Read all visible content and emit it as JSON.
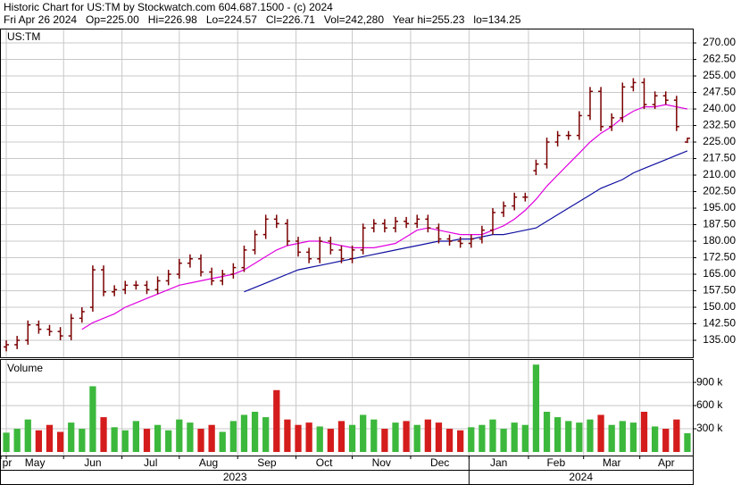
{
  "chart_data": {
    "type": "ohlc",
    "title": "Historic Chart for US:TM by Stockwatch.com 604.687.1500 - (c) 2024",
    "subtitle": "Fri Apr 26 2024   Op=225.00   Hi=226.98   Lo=224.57   Cl=226.71   Vol=242,280   Year hi=255.23   lo=134.25",
    "symbol": "US:TM",
    "bar_color": "#7a0000",
    "open": [
      132,
      133,
      135,
      142,
      140,
      139,
      137,
      145,
      150,
      167,
      157,
      158,
      160,
      160,
      158,
      162,
      165,
      170,
      172,
      166,
      162,
      165,
      168,
      176,
      183,
      190,
      188,
      180,
      175,
      172,
      180,
      176,
      172,
      176,
      186,
      188,
      186,
      189,
      188,
      190,
      186,
      181,
      180,
      179,
      181,
      185,
      193,
      196,
      200,
      212,
      215,
      225,
      228,
      228,
      237,
      248,
      232,
      236,
      250,
      252,
      242,
      246,
      244,
      225
    ],
    "high": [
      135,
      137,
      144,
      144,
      142,
      141,
      147,
      150,
      169,
      169,
      160,
      162,
      162,
      162,
      164,
      167,
      172,
      174,
      174,
      168,
      167,
      170,
      178,
      185,
      192,
      192,
      190,
      182,
      177,
      182,
      182,
      178,
      178,
      188,
      190,
      190,
      191,
      191,
      192,
      192,
      188,
      183,
      182,
      183,
      187,
      195,
      198,
      202,
      202,
      217,
      227,
      230,
      230,
      239,
      250,
      250,
      238,
      252,
      254,
      254,
      248,
      248,
      246,
      226.98
    ],
    "low": [
      130,
      131,
      133,
      138,
      137,
      135,
      135,
      143,
      148,
      155,
      155,
      156,
      158,
      156,
      156,
      160,
      163,
      168,
      164,
      160,
      160,
      163,
      166,
      174,
      181,
      186,
      178,
      173,
      170,
      170,
      174,
      170,
      170,
      174,
      184,
      184,
      184,
      186,
      186,
      184,
      179,
      178,
      177,
      177,
      179,
      183,
      191,
      194,
      198,
      210,
      213,
      223,
      226,
      226,
      235,
      230,
      230,
      234,
      248,
      240,
      240,
      242,
      230,
      224.57
    ],
    "close": [
      133,
      135,
      142,
      140,
      139,
      137,
      145,
      148,
      167,
      157,
      158,
      160,
      160,
      158,
      162,
      165,
      170,
      172,
      166,
      162,
      165,
      168,
      176,
      183,
      190,
      188,
      180,
      175,
      172,
      180,
      176,
      172,
      176,
      186,
      188,
      186,
      189,
      188,
      190,
      186,
      181,
      180,
      179,
      181,
      185,
      193,
      196,
      200,
      200,
      215,
      225,
      228,
      228,
      237,
      248,
      232,
      236,
      250,
      252,
      242,
      246,
      244,
      232,
      226.71
    ],
    "xlim": [
      -0.5,
      63.5
    ],
    "ylim": [
      127.3,
      276.1
    ],
    "yticks": [
      {
        "value": 135,
        "label": "135.00"
      },
      {
        "value": 142.5,
        "label": "142.50"
      },
      {
        "value": 150,
        "label": "150.00"
      },
      {
        "value": 157.5,
        "label": "157.50"
      },
      {
        "value": 165,
        "label": "165.00"
      },
      {
        "value": 172.5,
        "label": "172.50"
      },
      {
        "value": 180,
        "label": "180.00"
      },
      {
        "value": 187.5,
        "label": "187.50"
      },
      {
        "value": 195,
        "label": "195.00"
      },
      {
        "value": 202.5,
        "label": "202.50"
      },
      {
        "value": 210,
        "label": "210.00"
      },
      {
        "value": 217.5,
        "label": "217.50"
      },
      {
        "value": 225,
        "label": "225.00"
      },
      {
        "value": 232.5,
        "label": "232.50"
      },
      {
        "value": 240,
        "label": "240.00"
      },
      {
        "value": 247.5,
        "label": "247.50"
      },
      {
        "value": 255,
        "label": "255.00"
      },
      {
        "value": 262.5,
        "label": "262.50"
      },
      {
        "value": 270,
        "label": "270.00"
      }
    ],
    "xticks": [
      {
        "value": -0.5,
        "label": "pr"
      },
      {
        "value": 0,
        "label": "May"
      },
      {
        "value": 5.3,
        "label": "Jun"
      },
      {
        "value": 10.7,
        "label": "Jul"
      },
      {
        "value": 16,
        "label": "Aug"
      },
      {
        "value": 21.4,
        "label": "Sep"
      },
      {
        "value": 26.8,
        "label": "Oct"
      },
      {
        "value": 32,
        "label": "Nov"
      },
      {
        "value": 37.4,
        "label": "Dec"
      },
      {
        "value": 42.8,
        "label": "Jan"
      },
      {
        "value": 48.3,
        "label": "Feb"
      },
      {
        "value": 53.4,
        "label": "Mar"
      },
      {
        "value": 58.6,
        "label": "Apr"
      }
    ],
    "years": [
      {
        "value": -0.5,
        "label": "2023"
      },
      {
        "value": 42.8,
        "label": "2024"
      }
    ],
    "grid": true,
    "series": [
      {
        "color": "#e000e0",
        "values": [
          null,
          null,
          null,
          null,
          null,
          null,
          null,
          140,
          143,
          145,
          147,
          150,
          152,
          154,
          156,
          158,
          160,
          161,
          162,
          163,
          164,
          165,
          167,
          170,
          173,
          176,
          178,
          179,
          180,
          180,
          179,
          178,
          177,
          177,
          177,
          178,
          179,
          182,
          185,
          186,
          185,
          184,
          183,
          183,
          183,
          185,
          187,
          190,
          194,
          199,
          205,
          210,
          215,
          220,
          225,
          229,
          232,
          236,
          239,
          241,
          241,
          242,
          241,
          240
        ]
      },
      {
        "color": "#1010a0",
        "values": [
          null,
          null,
          null,
          null,
          null,
          null,
          null,
          null,
          null,
          null,
          null,
          null,
          null,
          null,
          null,
          null,
          null,
          null,
          null,
          null,
          null,
          null,
          157,
          159,
          161,
          163,
          165,
          167,
          168,
          169,
          170,
          171,
          172,
          173,
          174,
          175,
          176,
          177,
          178,
          179,
          180,
          180,
          181,
          181,
          182,
          183,
          183,
          184,
          185,
          186,
          189,
          192,
          195,
          198,
          201,
          204,
          206,
          208,
          211,
          213,
          215,
          217,
          219,
          221
        ]
      }
    ],
    "volume": {
      "title": "Volume",
      "up_color": "#3cb83c",
      "down_color": "#d41c1c",
      "values": [
        250000,
        300000,
        420000,
        280000,
        350000,
        260000,
        380000,
        300000,
        850000,
        450000,
        320000,
        280000,
        400000,
        300000,
        350000,
        280000,
        420000,
        380000,
        300000,
        350000,
        260000,
        400000,
        480000,
        520000,
        450000,
        800000,
        420000,
        350000,
        380000,
        330000,
        300000,
        400000,
        350000,
        480000,
        420000,
        300000,
        380000,
        400000,
        350000,
        420000,
        380000,
        300000,
        280000,
        320000,
        350000,
        420000,
        300000,
        380000,
        350000,
        1130000,
        520000,
        450000,
        400000,
        380000,
        420000,
        480000,
        350000,
        400000,
        380000,
        520000,
        330000,
        300000,
        420000,
        242280
      ],
      "ylim": [
        -46000,
        1190000
      ],
      "yticks": [
        {
          "value": 300000,
          "label": "300 k"
        },
        {
          "value": 600000,
          "label": "600 k"
        },
        {
          "value": 900000,
          "label": "900 k"
        }
      ]
    }
  }
}
